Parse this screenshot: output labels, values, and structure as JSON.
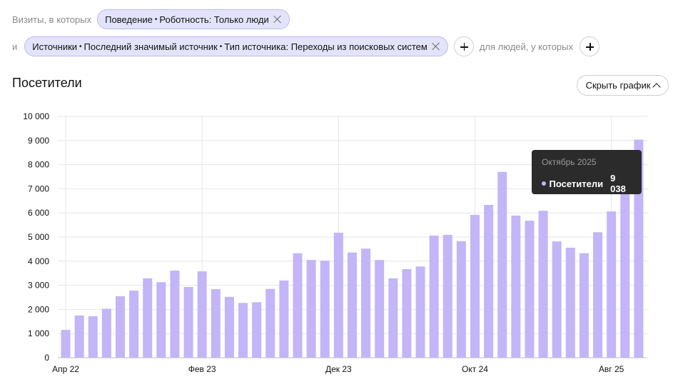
{
  "filters": {
    "visits_label": "Визиты, в которых",
    "chip1": {
      "part1": "Поведение",
      "part2": "Роботность: Только люди"
    },
    "and_label": "и",
    "chip2": {
      "part1": "Источники",
      "part2": "Последний значимый источник",
      "part3": "Тип источника: Переходы из поисковых систем"
    },
    "people_label": "для людей, у которых"
  },
  "section": {
    "title": "Посетители",
    "toggle_label": "Скрыть график"
  },
  "tooltip": {
    "title": "Октябрь 2025",
    "series": "Посетители",
    "value": "9 038"
  },
  "colors": {
    "bar": "#c3b5f7",
    "tooltip_bg": "#2b2b2b",
    "chip_bg": "#e3e4fb"
  },
  "chart_data": {
    "type": "bar",
    "ylim": [
      0,
      10000
    ],
    "y_ticks": [
      "0",
      "1 000",
      "2 000",
      "3 000",
      "4 000",
      "5 000",
      "6 000",
      "7 000",
      "8 000",
      "9 000",
      "10 000"
    ],
    "x_tick_labels": [
      {
        "index": 0,
        "label": "Апр 22"
      },
      {
        "index": 10,
        "label": "Фев 23"
      },
      {
        "index": 20,
        "label": "Дек 23"
      },
      {
        "index": 30,
        "label": "Окт 24"
      },
      {
        "index": 40,
        "label": "Авг 25"
      }
    ],
    "values": [
      1150,
      1750,
      1720,
      2030,
      2550,
      2780,
      3290,
      3130,
      3610,
      2930,
      3580,
      2840,
      2520,
      2270,
      2300,
      2850,
      3200,
      4330,
      4050,
      4020,
      5180,
      4360,
      4520,
      4050,
      3290,
      3670,
      3780,
      5060,
      5090,
      4830,
      5920,
      6330,
      7700,
      5890,
      5680,
      6090,
      4820,
      4560,
      4330,
      5200,
      6060,
      7000,
      9038
    ]
  }
}
